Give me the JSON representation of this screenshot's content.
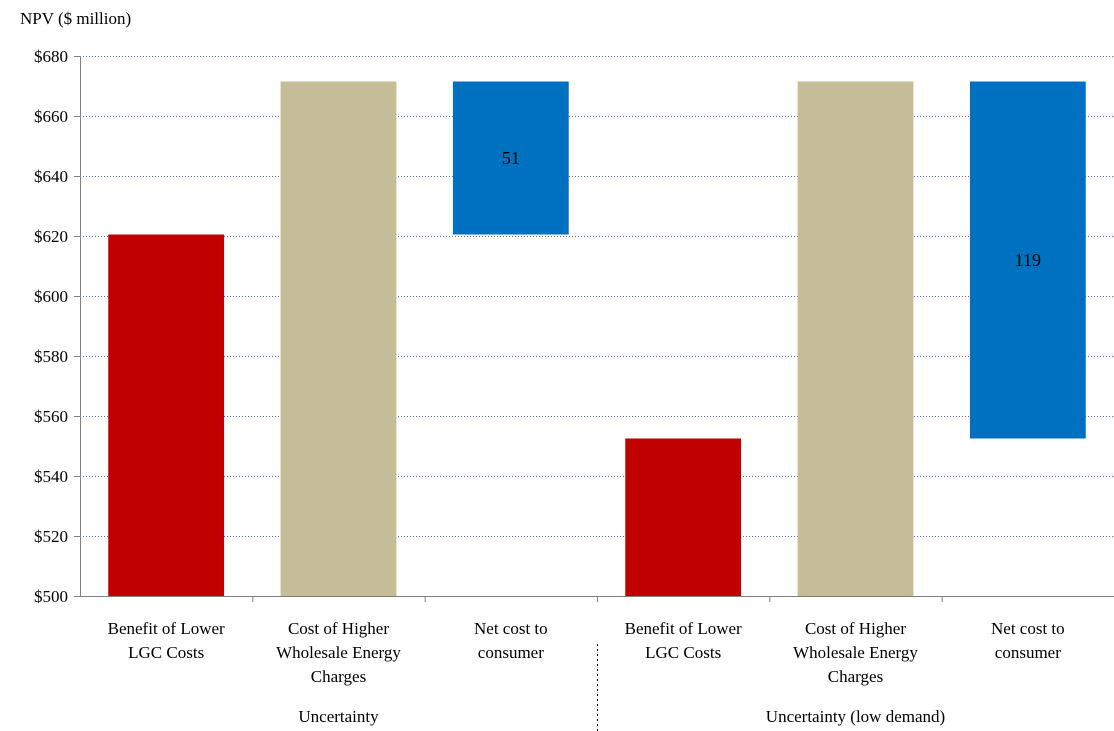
{
  "chart_data": {
    "type": "bar",
    "subtype": "waterfall",
    "ylabel": "NPV ($ million)",
    "ylim": [
      500,
      680
    ],
    "yticks": [
      500,
      520,
      540,
      560,
      580,
      600,
      620,
      640,
      660,
      680
    ],
    "ytick_prefix": "$",
    "grid": true,
    "groups": [
      {
        "name": "Uncertainty",
        "bars": [
          {
            "category": "Benefit of Lower LGC Costs",
            "bottom": 500,
            "top": 620.5,
            "color": "#c00000",
            "label": ""
          },
          {
            "category": "Cost of Higher Wholesale Energy Charges",
            "bottom": 500,
            "top": 671.5,
            "color": "#c4bd97",
            "label": ""
          },
          {
            "category": "Net cost to consumer",
            "bottom": 620.5,
            "top": 671.5,
            "color": "#0070c0",
            "label": "51"
          }
        ]
      },
      {
        "name": "Uncertainty (low demand)",
        "bars": [
          {
            "category": "Benefit of Lower LGC Costs",
            "bottom": 500,
            "top": 552.5,
            "color": "#c00000",
            "label": ""
          },
          {
            "category": "Cost of Higher Wholesale Energy Charges",
            "bottom": 500,
            "top": 671.5,
            "color": "#c4bd97",
            "label": ""
          },
          {
            "category": "Net cost to consumer",
            "bottom": 552.5,
            "top": 671.5,
            "color": "#0070c0",
            "label": "119"
          }
        ]
      }
    ],
    "category_label_lines": {
      "Benefit of Lower LGC Costs": [
        "Benefit of Lower",
        "LGC Costs"
      ],
      "Cost of Higher Wholesale Energy Charges": [
        "Cost of Higher",
        "Wholesale Energy",
        "Charges"
      ],
      "Net cost to consumer": [
        "Net cost to",
        "consumer"
      ]
    }
  }
}
